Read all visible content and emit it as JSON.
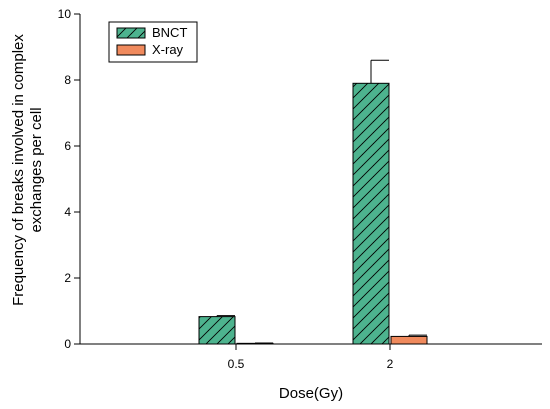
{
  "chart_data": {
    "type": "bar",
    "categories": [
      "0.5",
      "2"
    ],
    "series": [
      {
        "name": "BNCT",
        "values": [
          0.83,
          7.9
        ],
        "errors": [
          0.03,
          0.7
        ],
        "color": "#4db38e",
        "pattern": "hatch"
      },
      {
        "name": "X-ray",
        "values": [
          0.02,
          0.23
        ],
        "errors": [
          0.01,
          0.04
        ],
        "color": "#f08a5d",
        "pattern": "solid"
      }
    ],
    "title": "",
    "xlabel": "Dose(Gy)",
    "ylabel_lines": [
      "Frequency of breaks involved in complex",
      "exchanges per cell"
    ],
    "ylim": [
      0,
      10
    ],
    "yticks": [
      "0",
      "2",
      "4",
      "6",
      "8",
      "10"
    ],
    "grid": false,
    "legend_placement": "top-left"
  }
}
